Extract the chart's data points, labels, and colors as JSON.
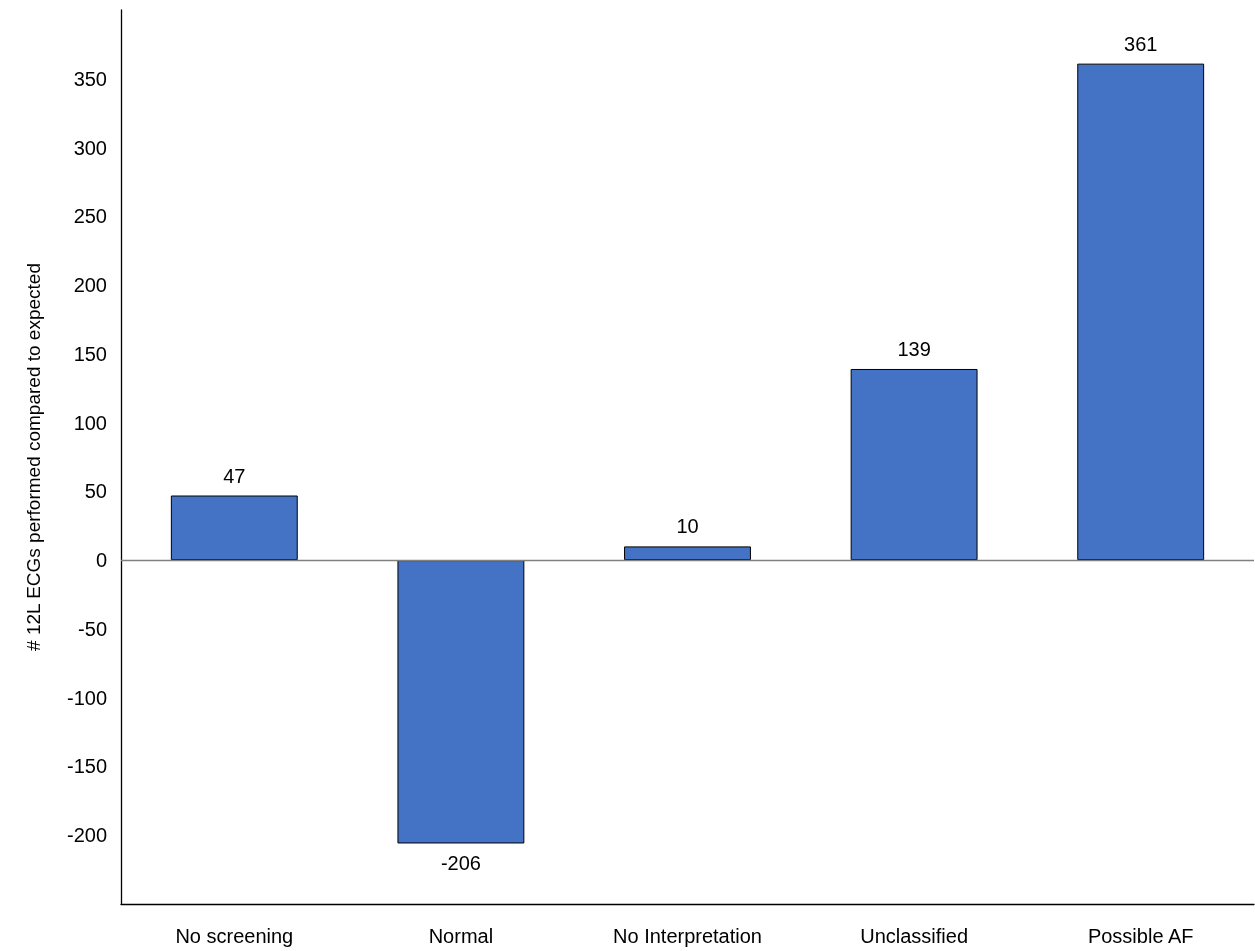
{
  "chart_data": {
    "type": "bar",
    "ylabel": "# 12L ECGs performed compared to expected",
    "categories": [
      "No screening",
      "Normal",
      "No Interpretation",
      "Unclassified",
      "Possible AF"
    ],
    "values": [
      47,
      -206,
      10,
      139,
      361
    ],
    "color": "#4472c4",
    "ylim": [
      -250,
      400
    ],
    "yticks": [
      -200,
      -150,
      -100,
      -50,
      0,
      50,
      100,
      150,
      200,
      250,
      300,
      350
    ],
    "data_labels": true,
    "grid": false,
    "ref_lines": [
      {
        "axis": "y",
        "value": 0,
        "color": "#808080"
      }
    ]
  }
}
